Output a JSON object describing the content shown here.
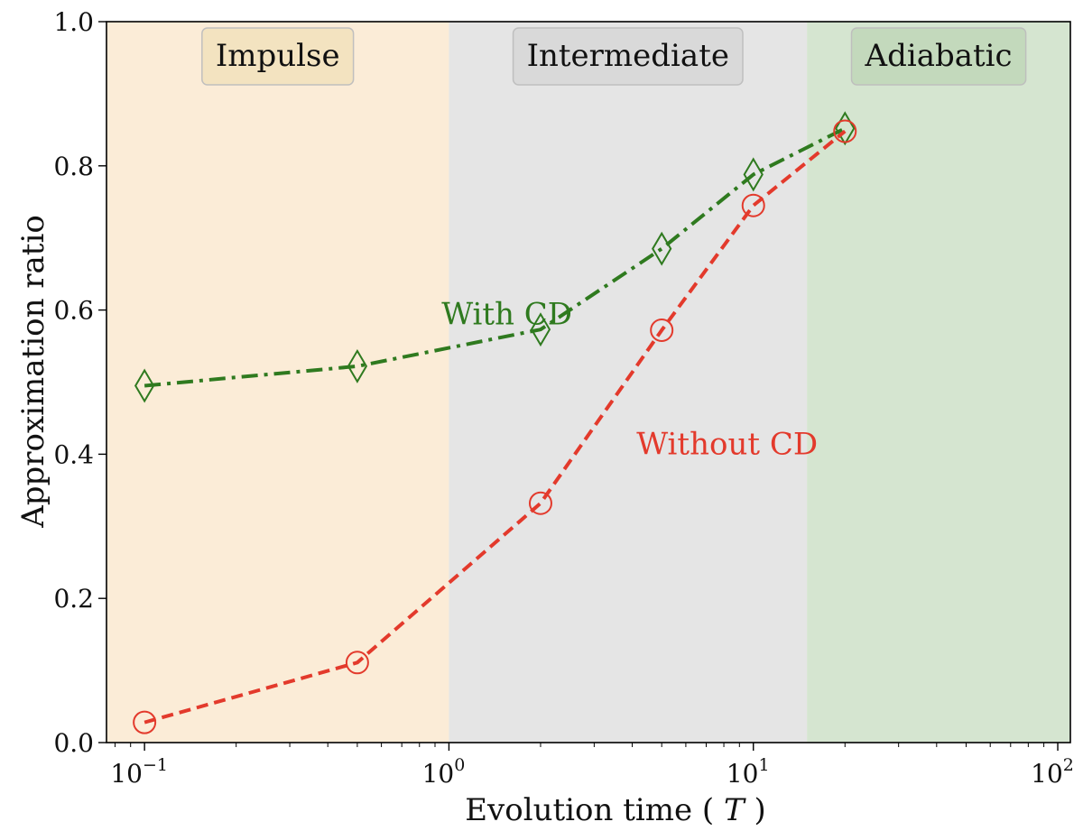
{
  "chart_data": {
    "type": "line",
    "xlabel": "Evolution time ( T )",
    "xlabel_main": "Evolution time (",
    "xlabel_var": "T",
    "xlabel_close": ")",
    "ylabel": "Approximation ratio",
    "xscale": "log",
    "xlim": [
      0.075,
      110
    ],
    "ylim": [
      0.0,
      1.0
    ],
    "x_ticks": [
      0.1,
      1,
      10,
      100
    ],
    "x_tick_labels": [
      {
        "base": "10",
        "exp": "−1"
      },
      {
        "base": "10",
        "exp": "0"
      },
      {
        "base": "10",
        "exp": "1"
      },
      {
        "base": "10",
        "exp": "2"
      }
    ],
    "y_ticks": [
      0.0,
      0.2,
      0.4,
      0.6,
      0.8,
      1.0
    ],
    "y_tick_labels": [
      "0.0",
      "0.2",
      "0.4",
      "0.6",
      "0.8",
      "1.0"
    ],
    "regions": [
      {
        "label": "Impulse",
        "x_start": 0.075,
        "x_end": 1,
        "color": "#fbecd7",
        "box_color": "#f3e3bf"
      },
      {
        "label": "Intermediate",
        "x_start": 1,
        "x_end": 15,
        "color": "#e5e5e5",
        "box_color": "#d9d9d9"
      },
      {
        "label": "Adiabatic",
        "x_start": 15,
        "x_end": 110,
        "color": "#d5e5d0",
        "box_color": "#c3d9bb"
      }
    ],
    "x": [
      0.1,
      0.5,
      2,
      5,
      10,
      20
    ],
    "series": [
      {
        "name": "With CD",
        "values": [
          0.495,
          0.522,
          0.573,
          0.685,
          0.788,
          0.852
        ],
        "color": "#2f7a1f",
        "marker": "diamond",
        "dash": "dashdot"
      },
      {
        "name": "Without CD",
        "values": [
          0.028,
          0.111,
          0.332,
          0.572,
          0.745,
          0.848
        ],
        "color": "#e33a2c",
        "marker": "circle",
        "dash": "dashed"
      }
    ],
    "annotations": [
      {
        "text": "With CD",
        "series": 0,
        "anchor_x": 1.55,
        "anchor_y": 0.595
      },
      {
        "text": "Without CD",
        "series": 1,
        "anchor_x": 8.2,
        "anchor_y": 0.415
      }
    ]
  }
}
